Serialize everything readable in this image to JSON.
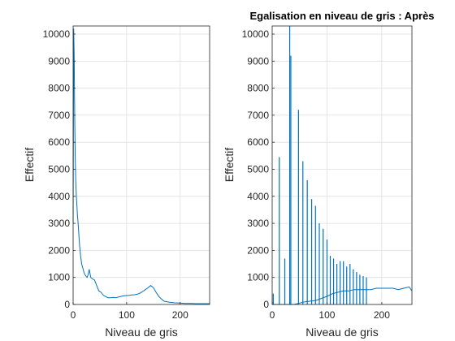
{
  "chart_data": [
    {
      "type": "line",
      "title": "",
      "xlabel": "Niveau de gris",
      "ylabel": "Effectif",
      "xlim": [
        0,
        255
      ],
      "ylim": [
        0,
        10300
      ],
      "xticks": [
        "0",
        "100",
        "200"
      ],
      "yticks": [
        "0",
        "1000",
        "2000",
        "3000",
        "4000",
        "5000",
        "6000",
        "7000",
        "8000",
        "9000",
        "10000"
      ],
      "grid": true,
      "color": "#0072bd",
      "x": [
        0,
        1,
        2,
        3,
        4,
        5,
        6,
        7,
        8,
        9,
        10,
        12,
        14,
        16,
        18,
        20,
        22,
        24,
        26,
        28,
        30,
        33,
        36,
        40,
        44,
        48,
        52,
        56,
        60,
        65,
        70,
        75,
        80,
        85,
        90,
        95,
        100,
        105,
        110,
        115,
        120,
        125,
        130,
        135,
        140,
        145,
        150,
        155,
        160,
        165,
        170,
        180,
        190,
        200,
        210,
        220,
        230,
        240,
        250,
        255
      ],
      "values": [
        3000,
        10200,
        9200,
        6800,
        5400,
        4500,
        4000,
        3700,
        3300,
        3100,
        2800,
        2200,
        1800,
        1500,
        1350,
        1200,
        1100,
        1050,
        1000,
        1100,
        1300,
        1000,
        950,
        900,
        700,
        500,
        450,
        350,
        300,
        250,
        250,
        260,
        250,
        280,
        300,
        320,
        330,
        340,
        350,
        360,
        380,
        420,
        480,
        550,
        620,
        700,
        620,
        450,
        300,
        200,
        120,
        80,
        60,
        50,
        40,
        40,
        30,
        30,
        30,
        30
      ]
    },
    {
      "type": "line",
      "title": "Egalisation en niveau de gris : Après",
      "xlabel": "Niveau de gris",
      "ylabel": "Effectif",
      "xlim": [
        0,
        255
      ],
      "ylim": [
        0,
        10300
      ],
      "xticks": [
        "0",
        "100",
        "200"
      ],
      "yticks": [
        "0",
        "1000",
        "2000",
        "3000",
        "4000",
        "5000",
        "6000",
        "7000",
        "8000",
        "9000",
        "10000"
      ],
      "grid": true,
      "color": "#0072bd",
      "spikes": {
        "x": [
          2,
          13,
          23,
          32,
          34,
          48,
          56,
          64,
          72,
          79,
          86,
          93,
          100,
          106,
          112,
          118,
          124,
          130,
          136,
          142,
          148,
          154,
          160,
          166,
          172
        ],
        "values": [
          400,
          5450,
          1700,
          10300,
          9200,
          7200,
          5300,
          4600,
          3900,
          3650,
          3000,
          2800,
          2400,
          1800,
          1700,
          1500,
          1600,
          1600,
          1400,
          1500,
          1300,
          1200,
          1100,
          1050,
          1000
        ]
      },
      "baseline": {
        "x": [
          0,
          20,
          40,
          60,
          80,
          100,
          110,
          120,
          130,
          140,
          150,
          160,
          170,
          180,
          190,
          200,
          210,
          220,
          230,
          240,
          250,
          255
        ],
        "values": [
          0,
          0,
          0,
          100,
          150,
          300,
          400,
          450,
          500,
          500,
          550,
          550,
          550,
          550,
          600,
          600,
          600,
          600,
          550,
          600,
          650,
          500
        ]
      }
    }
  ]
}
